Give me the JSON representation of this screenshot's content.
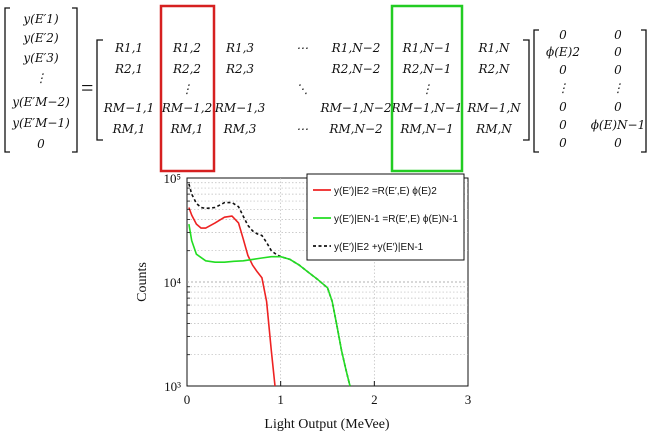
{
  "equation": {
    "lhs": [
      "y(E′1)",
      "y(E′2)",
      "y(E′3)",
      "⋮",
      "y(E′M−2)",
      "y(E′M−1)",
      "0"
    ],
    "equals": "=",
    "matrix_rows": [
      [
        "R1,1",
        "R1,2",
        "R1,3",
        "⋯",
        "R1,N−2",
        "R1,N−1",
        "R1,N"
      ],
      [
        "R2,1",
        "R2,2",
        "R2,3",
        "",
        "R2,N−2",
        "R2,N−1",
        "R2,N"
      ],
      [
        "",
        "⋮",
        "",
        "⋱",
        "",
        "⋮",
        ""
      ],
      [
        "RM−1,1",
        "RM−1,2",
        "RM−1,3",
        "",
        "RM−1,N−2",
        "RM−1,N−1",
        "RM−1,N"
      ],
      [
        "RM,1",
        "RM,1",
        "RM,3",
        "⋯",
        "RM,N−2",
        "RM,N−1",
        "RM,N"
      ]
    ],
    "vector": [
      [
        "0",
        "0"
      ],
      [
        "ϕ(E)2",
        "0"
      ],
      [
        "0",
        "0"
      ],
      [
        "⋮",
        "⋮"
      ],
      [
        "0",
        "0"
      ],
      [
        "0",
        "ϕ(E)N−1"
      ],
      [
        "0",
        "0"
      ]
    ],
    "highlight_colors": {
      "column_2": "#d62020",
      "column_n_minus_1": "#22cc22"
    }
  },
  "chart_data": {
    "type": "line",
    "xlabel": "Light Output (MeVee)",
    "ylabel": "Counts",
    "xlim": [
      0,
      3
    ],
    "ylim": [
      1000,
      100000
    ],
    "yscale": "log",
    "x_ticks": [
      "0",
      "1",
      "2",
      "3"
    ],
    "y_ticks": [
      "10³",
      "10⁴",
      "10⁵"
    ],
    "grid": true,
    "legend_position": "top-right",
    "series": [
      {
        "name": "y(E′)|E2 =R(E′,E) ϕ(E)2",
        "color": "#ee2222",
        "style": "solid",
        "x": [
          0.02,
          0.05,
          0.1,
          0.15,
          0.2,
          0.3,
          0.4,
          0.48,
          0.55,
          0.6,
          0.65,
          0.7,
          0.75,
          0.8,
          0.85,
          0.9,
          0.94
        ],
        "y": [
          52000,
          44000,
          36000,
          33000,
          33000,
          37000,
          42000,
          43000,
          37000,
          26000,
          18000,
          14500,
          12500,
          11000,
          6500,
          2200,
          1000
        ]
      },
      {
        "name": "y(E′)|EN-1 =R(E′,E) ϕ(E)N-1",
        "color": "#22dd22",
        "style": "solid",
        "x": [
          0.02,
          0.05,
          0.1,
          0.2,
          0.3,
          0.4,
          0.5,
          0.6,
          0.7,
          0.8,
          0.9,
          0.95,
          1.0,
          1.1,
          1.2,
          1.3,
          1.4,
          1.5,
          1.55,
          1.6,
          1.65,
          1.7,
          1.74
        ],
        "y": [
          36000,
          25000,
          18500,
          16000,
          15500,
          15500,
          15800,
          16000,
          16500,
          17000,
          17500,
          17500,
          17500,
          16500,
          14500,
          12300,
          10500,
          8800,
          6500,
          3800,
          2200,
          1400,
          1000
        ]
      },
      {
        "name": "y(E′)|E2 +y(E′)|EN-1",
        "color": "#111111",
        "style": "dashed",
        "x": [
          0.02,
          0.05,
          0.1,
          0.15,
          0.2,
          0.3,
          0.4,
          0.48,
          0.55,
          0.6,
          0.65,
          0.7,
          0.75,
          0.8,
          0.85,
          0.9,
          0.95,
          1.0,
          1.1,
          1.2,
          1.3,
          1.4,
          1.5,
          1.55,
          1.6,
          1.65,
          1.7,
          1.74
        ],
        "y": [
          88000,
          70000,
          57000,
          52000,
          51000,
          52000,
          58000,
          58000,
          53000,
          43000,
          35000,
          31000,
          29000,
          28000,
          24000,
          20000,
          18500,
          17500,
          16500,
          14500,
          12300,
          10500,
          8800,
          6500,
          3800,
          2200,
          1400,
          1000
        ]
      }
    ]
  }
}
